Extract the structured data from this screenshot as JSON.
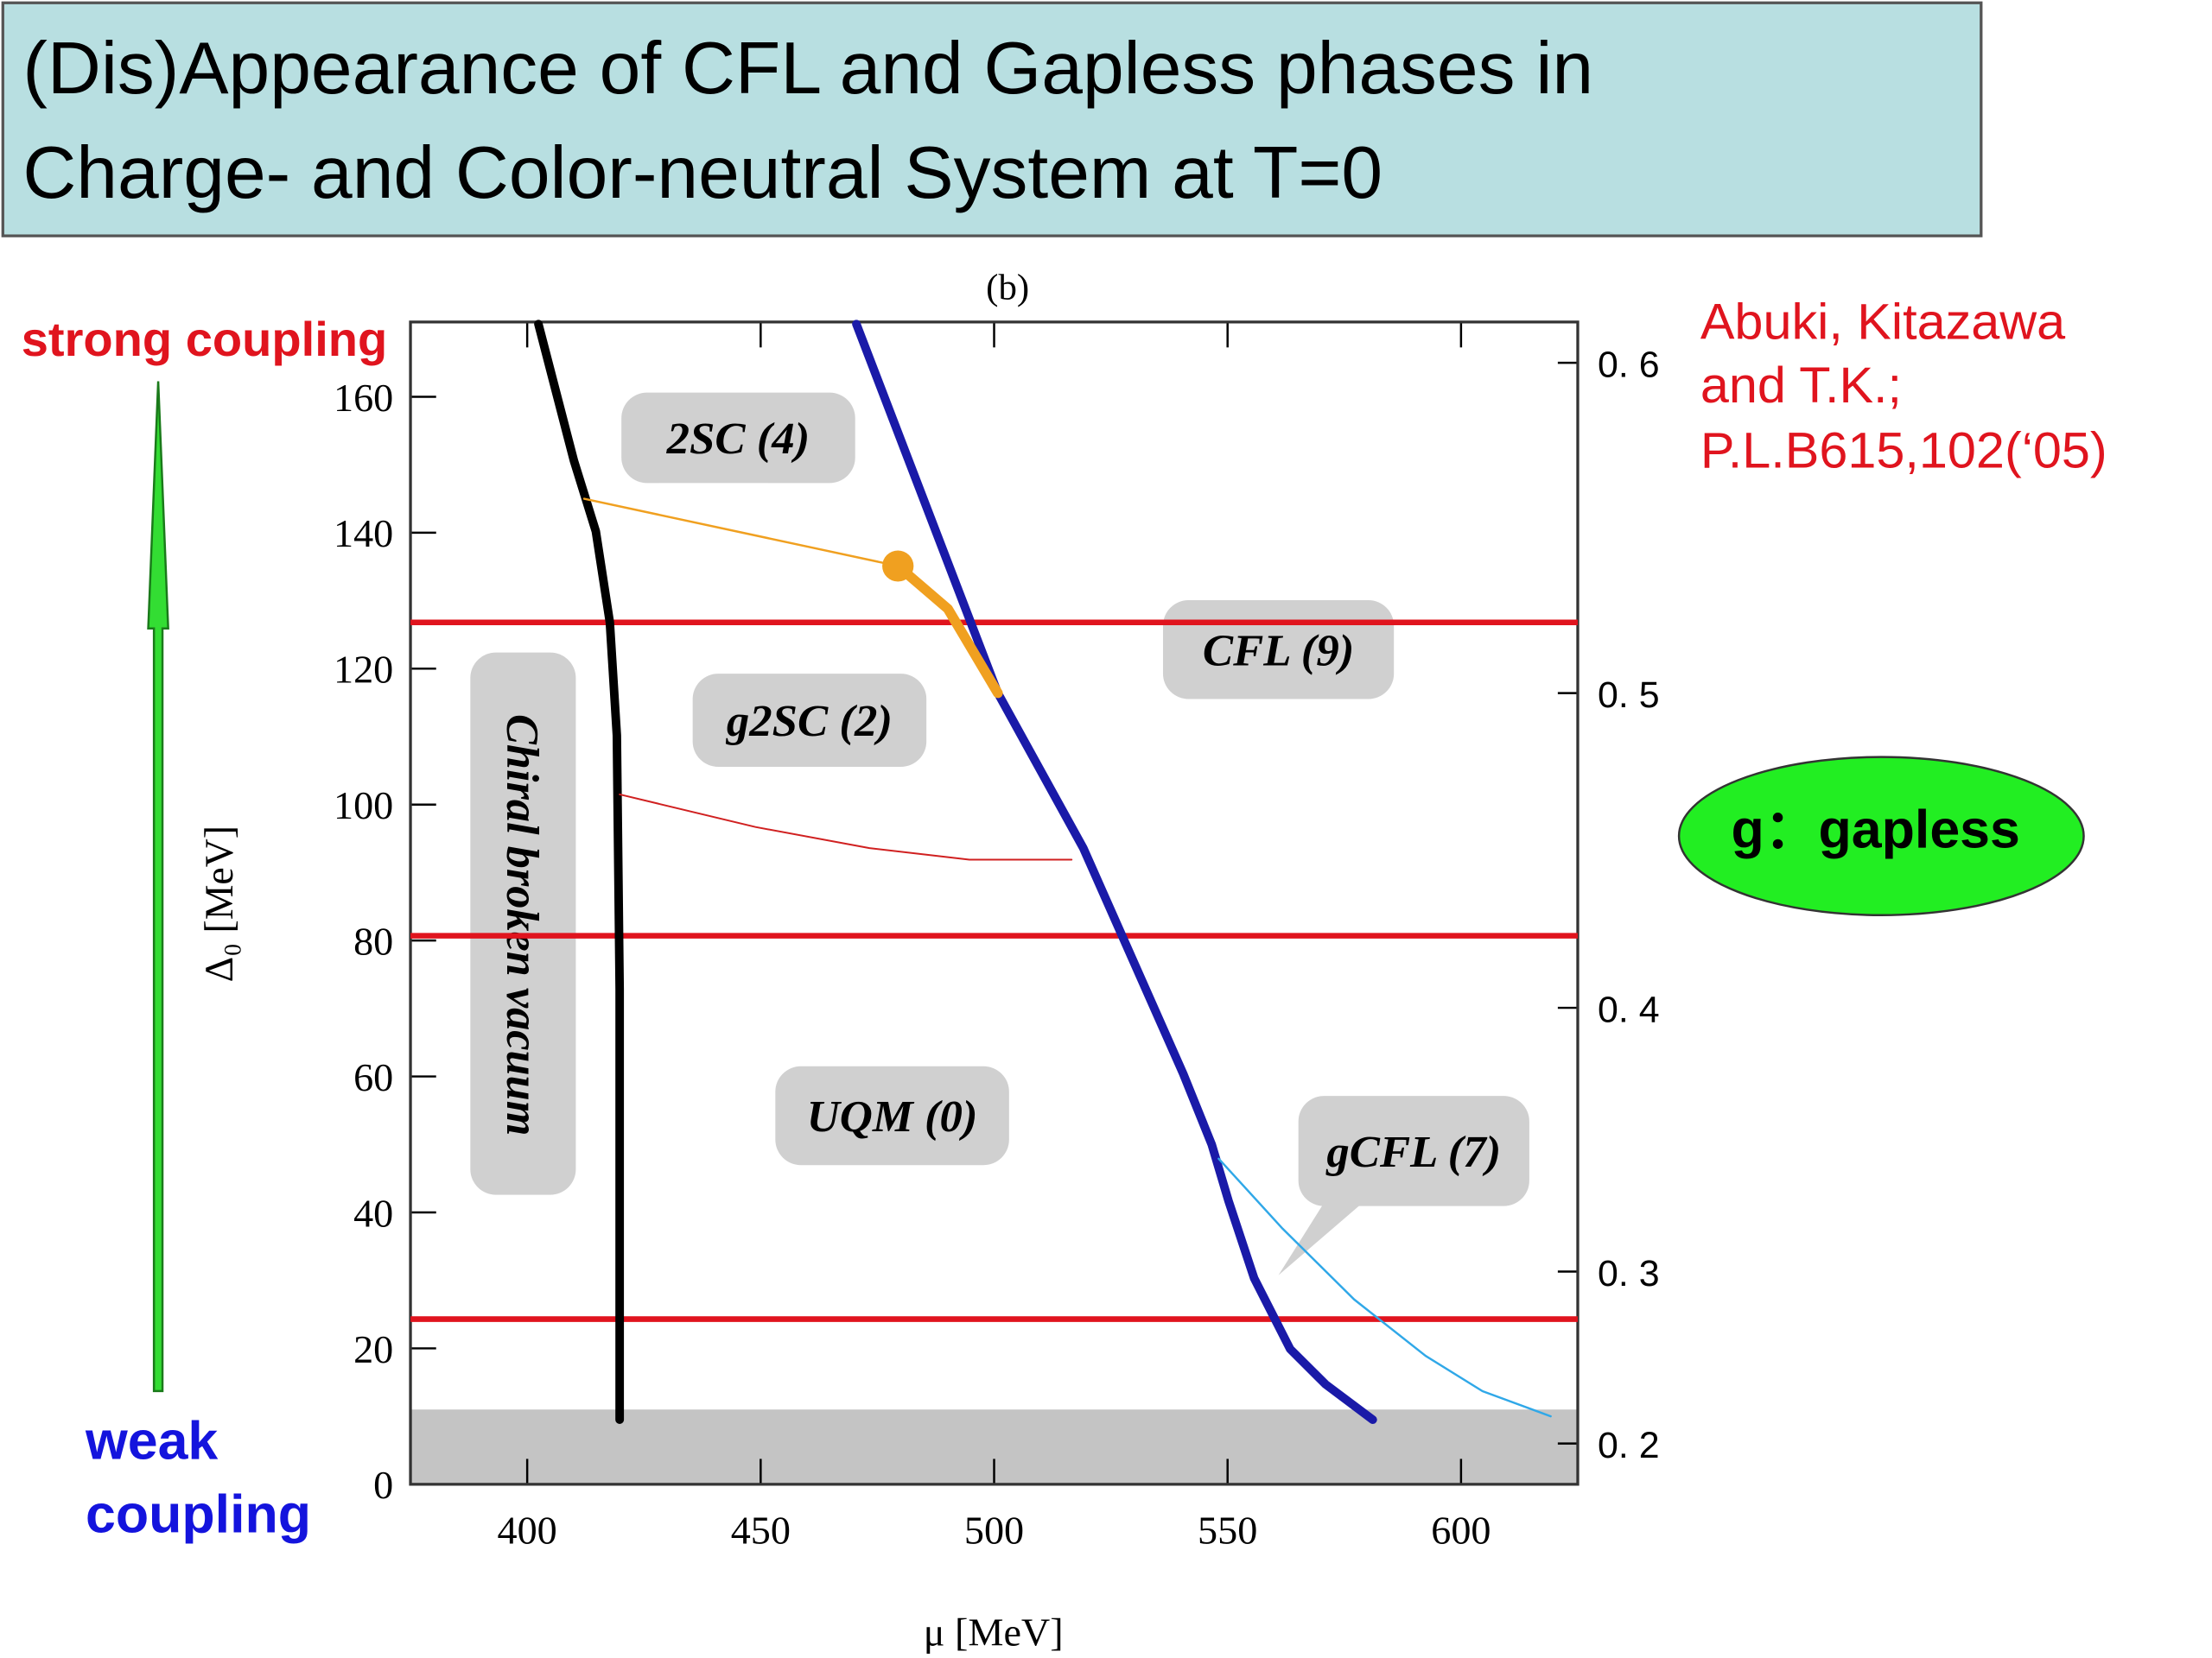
{
  "header": {
    "title": [
      "(Dis)Appearance of CFL and Gapless phases  in",
      "Charge- and Color-neutral System  at T=0"
    ]
  },
  "annotations": {
    "strong": "strong coupling",
    "weak": [
      "weak",
      "coupling"
    ],
    "citation": [
      "Abuki, Kitazawa",
      "and T.K.;",
      "P.L.B615,102(‘05)"
    ],
    "legend_note": "g：gapless"
  },
  "chart_data": {
    "type": "line",
    "title": "(b)",
    "x_label": "μ [MeV]",
    "y_label": "Δ₀ [MeV]",
    "xlim": [
      375,
      625
    ],
    "ylim": [
      0,
      171
    ],
    "xticks": [
      400,
      450,
      500,
      550,
      600
    ],
    "yticks": [
      0,
      20,
      40,
      60,
      80,
      100,
      120,
      140,
      160
    ],
    "y2ticks": [
      {
        "value": 165,
        "label": "0. 6"
      },
      {
        "value": 116.4,
        "label": "0. 5"
      },
      {
        "value": 70.1,
        "label": "0. 4"
      },
      {
        "value": 31.3,
        "label": "0. 3"
      },
      {
        "value": 6,
        "label": "0. 2"
      }
    ],
    "shaded_band": [
      0,
      11
    ],
    "shaded_color": "#c4c4c4",
    "hlines": [
      126.8,
      80.7,
      24.3
    ],
    "hline_color": "#e0141e",
    "series": [
      {
        "color": "#000000",
        "width": 6,
        "x": [
          402.4,
          410,
          414.7,
          417.7,
          419.2,
          419.8,
          419.8
        ],
        "values": [
          170.7,
          150.6,
          140.2,
          126.8,
          110.2,
          72.8,
          9.5
        ]
      },
      {
        "color": "#1a1aa8",
        "width": 6,
        "x": [
          470.5,
          500.8,
          519.1,
          540.5,
          546.6,
          550.2,
          555.7,
          563.4,
          571,
          581.1
        ],
        "values": [
          170.7,
          116.4,
          93.6,
          60.4,
          50,
          41.7,
          30.3,
          19.9,
          14.7,
          9.5
        ]
      },
      {
        "color": "#f0a020",
        "width": 1.5,
        "x": [
          412.2,
          479.4
        ],
        "values": [
          145,
          135.1
        ]
      },
      {
        "color": "#f0a020",
        "width": 7,
        "x": [
          479.4,
          490.1,
          500.8
        ],
        "values": [
          135.1,
          128.8,
          116.4
        ]
      },
      {
        "color": "#d02020",
        "width": 1.2,
        "x": [
          419.8,
          448.9,
          473.3,
          494.7,
          516.6
        ],
        "values": [
          101.5,
          96.7,
          93.6,
          91.9,
          91.9
        ]
      },
      {
        "color": "#30a8e8",
        "width": 1.5,
        "x": [
          548.1,
          561.8,
          577.1,
          592.4,
          604.6,
          619.2
        ],
        "values": [
          47.9,
          37.6,
          27.2,
          18.9,
          13.7,
          10
        ]
      }
    ],
    "point": {
      "x": 479.4,
      "y": 135.1,
      "color": "#f0a020"
    },
    "regions": [
      "2SC (4)",
      "CFL (9)",
      "g2SC (2)",
      "UQM (0)",
      "gCFL (7)",
      "Chiral broken vacuum"
    ]
  }
}
